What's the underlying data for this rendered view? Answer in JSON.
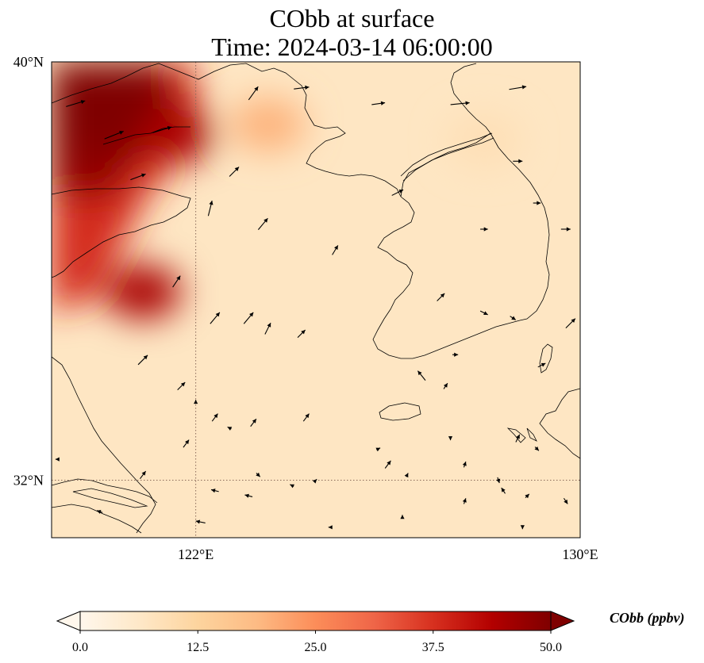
{
  "title": {
    "line1": "CObb at surface",
    "line2": "Time: 2024-03-14 06:00:00"
  },
  "map": {
    "variable": "CObb",
    "level": "surface",
    "extent": {
      "lon_min": 119,
      "lon_max": 130,
      "lat_min": 30.9,
      "lat_max": 40
    },
    "gridlines": {
      "style": "dotted",
      "color": "#8a6a5a"
    },
    "lat_ticks": [
      {
        "value": 40,
        "label": "40°N"
      },
      {
        "value": 32,
        "label": "32°N"
      }
    ],
    "lon_ticks": [
      {
        "value": 122,
        "label": "122°E"
      },
      {
        "value": 130,
        "label": "130°E"
      }
    ],
    "field_hotspots": [
      {
        "lon": 120.2,
        "lat": 38.8,
        "value": 50
      },
      {
        "lon": 119.8,
        "lat": 37.9,
        "value": 48
      },
      {
        "lon": 120.8,
        "lat": 39.4,
        "value": 50
      },
      {
        "lon": 121.6,
        "lat": 38.6,
        "value": 45
      },
      {
        "lon": 120.9,
        "lat": 35.6,
        "value": 45
      },
      {
        "lon": 123.5,
        "lat": 38.8,
        "value": 20
      },
      {
        "lon": 128.0,
        "lat": 38.5,
        "value": 9
      }
    ],
    "field_background": 7,
    "wind_vectors": [
      {
        "lon": 119.5,
        "lat": 39.2,
        "u": 1.0,
        "v": 0.3
      },
      {
        "lon": 120.3,
        "lat": 38.6,
        "u": 1.0,
        "v": 0.4
      },
      {
        "lon": 121.3,
        "lat": 38.7,
        "u": 1.0,
        "v": 0.3
      },
      {
        "lon": 123.2,
        "lat": 39.4,
        "u": 0.5,
        "v": 0.7
      },
      {
        "lon": 124.2,
        "lat": 39.5,
        "u": 0.8,
        "v": 0.1
      },
      {
        "lon": 125.8,
        "lat": 39.2,
        "u": 0.7,
        "v": 0.1
      },
      {
        "lon": 127.5,
        "lat": 39.2,
        "u": 1.0,
        "v": 0.1
      },
      {
        "lon": 128.7,
        "lat": 39.5,
        "u": 0.9,
        "v": 0.15
      },
      {
        "lon": 120.8,
        "lat": 37.8,
        "u": 0.8,
        "v": 0.3
      },
      {
        "lon": 122.8,
        "lat": 37.9,
        "u": 0.5,
        "v": 0.5
      },
      {
        "lon": 122.3,
        "lat": 37.2,
        "u": 0.2,
        "v": 0.8
      },
      {
        "lon": 123.4,
        "lat": 36.9,
        "u": 0.5,
        "v": 0.6
      },
      {
        "lon": 124.9,
        "lat": 36.4,
        "u": 0.3,
        "v": 0.5
      },
      {
        "lon": 121.6,
        "lat": 35.8,
        "u": 0.4,
        "v": 0.6
      },
      {
        "lon": 122.4,
        "lat": 35.1,
        "u": 0.5,
        "v": 0.6
      },
      {
        "lon": 123.1,
        "lat": 35.1,
        "u": 0.5,
        "v": 0.6
      },
      {
        "lon": 123.5,
        "lat": 34.9,
        "u": 0.3,
        "v": 0.6
      },
      {
        "lon": 124.2,
        "lat": 34.8,
        "u": 0.4,
        "v": 0.4
      },
      {
        "lon": 120.9,
        "lat": 34.3,
        "u": 0.5,
        "v": 0.5
      },
      {
        "lon": 121.7,
        "lat": 33.8,
        "u": 0.4,
        "v": 0.4
      },
      {
        "lon": 122.4,
        "lat": 33.2,
        "u": 0.3,
        "v": 0.4
      },
      {
        "lon": 123.2,
        "lat": 33.1,
        "u": 0.3,
        "v": 0.4
      },
      {
        "lon": 124.3,
        "lat": 33.2,
        "u": 0.3,
        "v": 0.4
      },
      {
        "lon": 121.8,
        "lat": 32.7,
        "u": 0.3,
        "v": 0.4
      },
      {
        "lon": 120.9,
        "lat": 32.1,
        "u": 0.3,
        "v": 0.4
      },
      {
        "lon": 125.8,
        "lat": 32.6,
        "u": 0.2,
        "v": 0.1
      },
      {
        "lon": 126.2,
        "lat": 37.5,
        "u": 0.6,
        "v": 0.3
      },
      {
        "lon": 128.7,
        "lat": 38.1,
        "u": 0.5,
        "v": 0.0
      },
      {
        "lon": 129.1,
        "lat": 37.3,
        "u": 0.4,
        "v": 0.0
      },
      {
        "lon": 128.0,
        "lat": 36.8,
        "u": 0.4,
        "v": 0.0
      },
      {
        "lon": 129.7,
        "lat": 36.8,
        "u": 0.5,
        "v": 0.0
      },
      {
        "lon": 127.1,
        "lat": 35.5,
        "u": 0.4,
        "v": 0.4
      },
      {
        "lon": 128.0,
        "lat": 35.2,
        "u": 0.4,
        "v": -0.2
      },
      {
        "lon": 128.6,
        "lat": 35.1,
        "u": 0.3,
        "v": -0.2
      },
      {
        "lon": 129.8,
        "lat": 35.0,
        "u": 0.5,
        "v": 0.5
      },
      {
        "lon": 127.4,
        "lat": 34.4,
        "u": 0.3,
        "v": 0.0
      },
      {
        "lon": 129.2,
        "lat": 34.2,
        "u": 0.4,
        "v": 0.2
      },
      {
        "lon": 126.7,
        "lat": 34.0,
        "u": -0.4,
        "v": 0.5
      },
      {
        "lon": 127.2,
        "lat": 33.8,
        "u": 0.2,
        "v": 0.3
      },
      {
        "lon": 127.3,
        "lat": 32.8,
        "u": 0.0,
        "v": -0.2
      },
      {
        "lon": 128.9,
        "lat": 31.7,
        "u": 0.2,
        "v": 0.2
      },
      {
        "lon": 128.3,
        "lat": 32.0,
        "u": 0.1,
        "v": -0.3
      },
      {
        "lon": 128.7,
        "lat": 32.8,
        "u": 0.2,
        "v": 0.4
      },
      {
        "lon": 129.1,
        "lat": 32.6,
        "u": 0.2,
        "v": -0.2
      },
      {
        "lon": 128.4,
        "lat": 31.8,
        "u": -0.2,
        "v": 0.3
      },
      {
        "lon": 127.6,
        "lat": 32.3,
        "u": 0.1,
        "v": 0.3
      },
      {
        "lon": 126.4,
        "lat": 32.1,
        "u": 0.1,
        "v": 0.2
      },
      {
        "lon": 126.0,
        "lat": 32.3,
        "u": 0.3,
        "v": 0.4
      },
      {
        "lon": 124.5,
        "lat": 32.0,
        "u": 0.1,
        "v": 0.1
      },
      {
        "lon": 123.3,
        "lat": 32.1,
        "u": 0.2,
        "v": -0.2
      },
      {
        "lon": 122.4,
        "lat": 31.8,
        "u": -0.4,
        "v": 0.1
      },
      {
        "lon": 123.1,
        "lat": 31.7,
        "u": -0.4,
        "v": 0.1
      },
      {
        "lon": 124.0,
        "lat": 31.9,
        "u": -0.2,
        "v": 0.1
      },
      {
        "lon": 124.8,
        "lat": 31.1,
        "u": -0.2,
        "v": 0.0
      },
      {
        "lon": 126.3,
        "lat": 31.3,
        "u": 0.0,
        "v": 0.2
      },
      {
        "lon": 127.6,
        "lat": 31.6,
        "u": 0.1,
        "v": 0.3
      },
      {
        "lon": 128.8,
        "lat": 31.1,
        "u": 0.0,
        "v": -0.2
      },
      {
        "lon": 129.7,
        "lat": 31.6,
        "u": 0.2,
        "v": -0.3
      },
      {
        "lon": 122.1,
        "lat": 31.2,
        "u": -0.5,
        "v": 0.1
      },
      {
        "lon": 120.0,
        "lat": 31.4,
        "u": -0.3,
        "v": 0.1
      },
      {
        "lon": 119.1,
        "lat": 32.4,
        "u": -0.1,
        "v": 0.0
      },
      {
        "lon": 122.0,
        "lat": 33.5,
        "u": 0.0,
        "v": 0.2
      },
      {
        "lon": 122.7,
        "lat": 33.0,
        "u": -0.2,
        "v": 0.1
      }
    ]
  },
  "colorbar": {
    "title": "CObb (ppbv)",
    "min": 0.0,
    "max": 50.0,
    "extend": "both",
    "colormap": "OrRd",
    "stops": [
      "#fff7ec",
      "#fee8c8",
      "#fdd49e",
      "#fdbb84",
      "#fc8d59",
      "#ef6548",
      "#d7301f",
      "#b30000",
      "#7f0000"
    ],
    "ticks": [
      "0.0",
      "12.5",
      "25.0",
      "37.5",
      "50.0"
    ]
  },
  "colors": {
    "coastline": "#000000",
    "gridline": "#8a6a5a",
    "frame": "#000000"
  }
}
